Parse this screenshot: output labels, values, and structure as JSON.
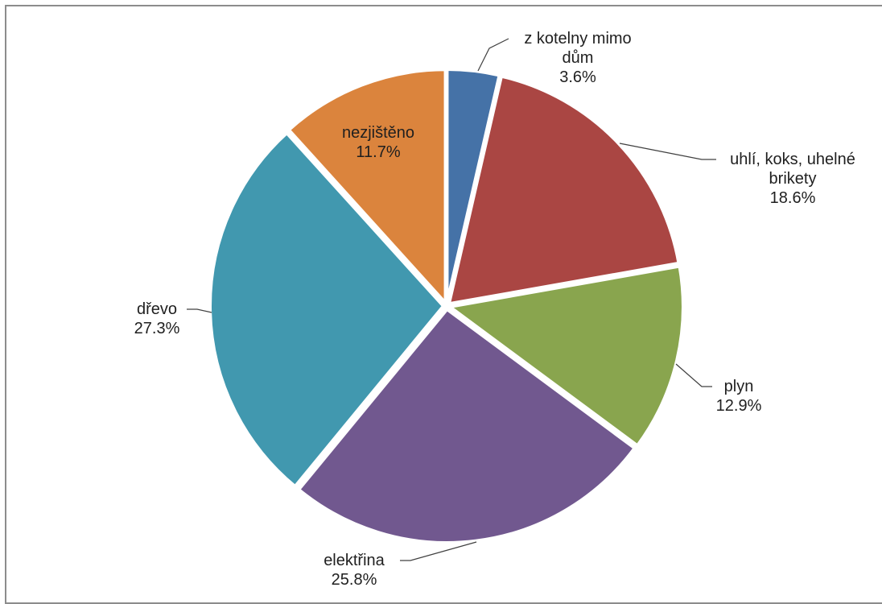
{
  "chart_data": {
    "type": "pie",
    "title": "",
    "slices": [
      {
        "label": "z kotelny mimo dům",
        "label_lines": [
          "z kotelny mimo",
          "dům"
        ],
        "value": 3.6,
        "value_text": "3.6%",
        "color": "#4572a7"
      },
      {
        "label": "uhlí, koks, uhelné brikety",
        "label_lines": [
          "uhlí, koks, uhelné",
          "brikety"
        ],
        "value": 18.6,
        "value_text": "18.6%",
        "color": "#aa4643"
      },
      {
        "label": "plyn",
        "label_lines": [
          "plyn"
        ],
        "value": 12.9,
        "value_text": "12.9%",
        "color": "#89a54e"
      },
      {
        "label": "elektřina",
        "label_lines": [
          "elektřina"
        ],
        "value": 25.8,
        "value_text": "25.8%",
        "color": "#71588f"
      },
      {
        "label": "dřevo",
        "label_lines": [
          "dřevo"
        ],
        "value": 27.3,
        "value_text": "27.3%",
        "color": "#4198af"
      },
      {
        "label": "nezjištěno",
        "label_lines": [
          "nezjištěno"
        ],
        "value": 11.7,
        "value_text": "11.7%",
        "color": "#db843d"
      }
    ],
    "start_angle_deg": 0,
    "direction": "clockwise",
    "legend": "none",
    "data_labels": "category name and percentage"
  }
}
